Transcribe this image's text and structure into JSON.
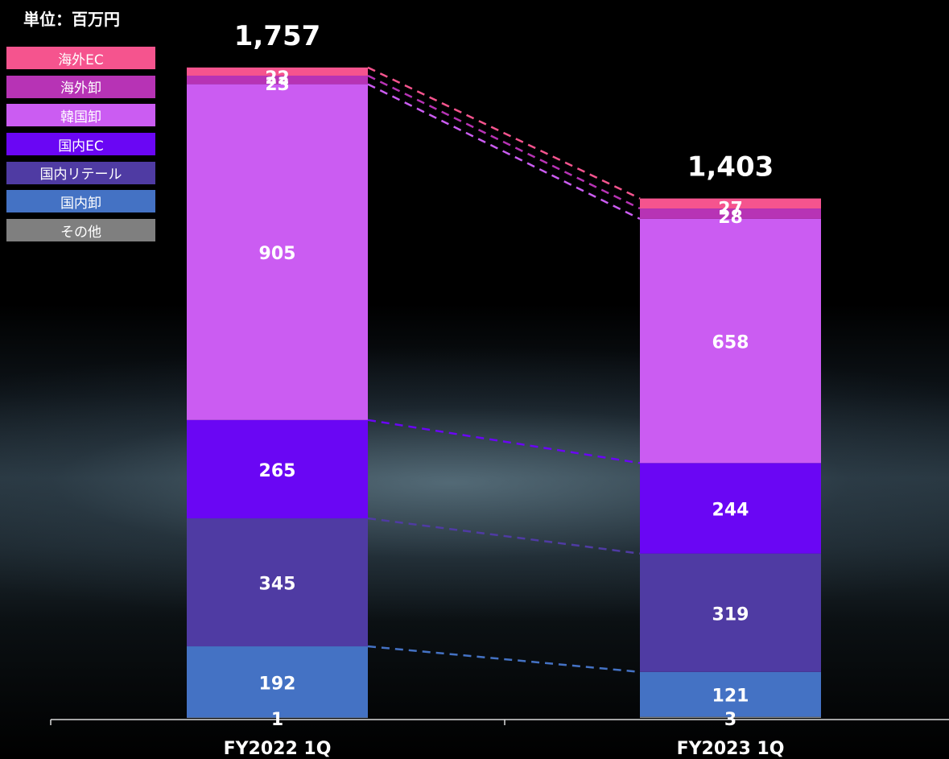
{
  "unit_label": "単位：百万円",
  "chart_data": {
    "type": "bar",
    "stacked": true,
    "categories": [
      "FY2022 1Q",
      "FY2023 1Q"
    ],
    "totals": [
      "1,757",
      "1,403"
    ],
    "series": [
      {
        "name": "その他",
        "color": "#7f7f7f",
        "values": [
          1,
          3
        ]
      },
      {
        "name": "国内卸",
        "color": "#4472c4",
        "values": [
          192,
          121
        ]
      },
      {
        "name": "国内リテール",
        "color": "#4f3ba3",
        "values": [
          345,
          319
        ]
      },
      {
        "name": "国内EC",
        "color": "#6a06f4",
        "values": [
          265,
          244
        ]
      },
      {
        "name": "韓国卸",
        "color": "#cb5cf2",
        "values": [
          905,
          658
        ]
      },
      {
        "name": "海外卸",
        "color": "#b733b5",
        "values": [
          23,
          28
        ]
      },
      {
        "name": "海外EC",
        "color": "#f5548e",
        "values": [
          22,
          27
        ]
      }
    ],
    "legend_position": "top-left",
    "connector_lines": "dashed",
    "grid": false
  }
}
